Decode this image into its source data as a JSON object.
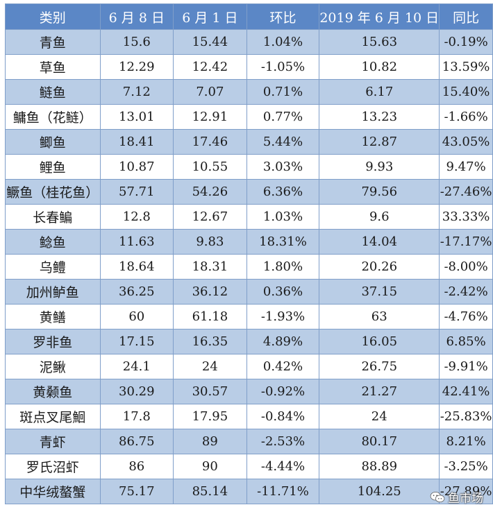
{
  "headers": [
    "类别",
    "6 月 8 日",
    "6 月 1 日",
    "环比",
    "2019 年 6 月 10 日",
    "同比"
  ],
  "rows": [
    [
      "青鱼",
      "15.6",
      "15.44",
      "1.04%",
      "15.63",
      "-0.19%"
    ],
    [
      "草鱼",
      "12.29",
      "12.42",
      "-1.05%",
      "10.82",
      "13.59%"
    ],
    [
      "鲢鱼",
      "7.12",
      "7.07",
      "0.71%",
      "6.17",
      "15.40%"
    ],
    [
      "鳙鱼（花鲢）",
      "13.01",
      "12.91",
      "0.77%",
      "13.23",
      "-1.66%"
    ],
    [
      "鲫鱼",
      "18.41",
      "17.46",
      "5.44%",
      "12.87",
      "43.05%"
    ],
    [
      "鲤鱼",
      "10.87",
      "10.55",
      "3.03%",
      "9.93",
      "9.47%"
    ],
    [
      "鳜鱼（桂花鱼）",
      "57.71",
      "54.26",
      "6.36%",
      "79.56",
      "-27.46%"
    ],
    [
      "长春鳊",
      "12.8",
      "12.67",
      "1.03%",
      "9.6",
      "33.33%"
    ],
    [
      "鲶鱼",
      "11.63",
      "9.83",
      "18.31%",
      "14.04",
      "-17.17%"
    ],
    [
      "乌鳢",
      "18.64",
      "18.31",
      "1.80%",
      "20.26",
      "-8.00%"
    ],
    [
      "加州鲈鱼",
      "36.25",
      "36.12",
      "0.36%",
      "37.15",
      "-2.42%"
    ],
    [
      "黄鳝",
      "60",
      "61.18",
      "-1.93%",
      "63",
      "-4.76%"
    ],
    [
      "罗非鱼",
      "17.15",
      "16.35",
      "4.89%",
      "16.05",
      "6.85%"
    ],
    [
      "泥鳅",
      "24.1",
      "24",
      "0.42%",
      "26.75",
      "-9.91%"
    ],
    [
      "黄颡鱼",
      "30.29",
      "30.57",
      "-0.92%",
      "21.27",
      "42.41%"
    ],
    [
      "斑点叉尾鮰",
      "17.8",
      "17.95",
      "-0.84%",
      "24",
      "-25.83%"
    ],
    [
      "青虾",
      "86.75",
      "89",
      "-2.53%",
      "80.17",
      "8.21%"
    ],
    [
      "罗氏沼虾",
      "86",
      "90",
      "-4.44%",
      "88.89",
      "-3.25%"
    ],
    [
      "中华绒螯蟹",
      "75.17",
      "85.14",
      "-11.71%",
      "104.25",
      "-27.89%"
    ]
  ],
  "watermark": {
    "text": "鱼市场",
    "icon": "wechat-icon"
  }
}
